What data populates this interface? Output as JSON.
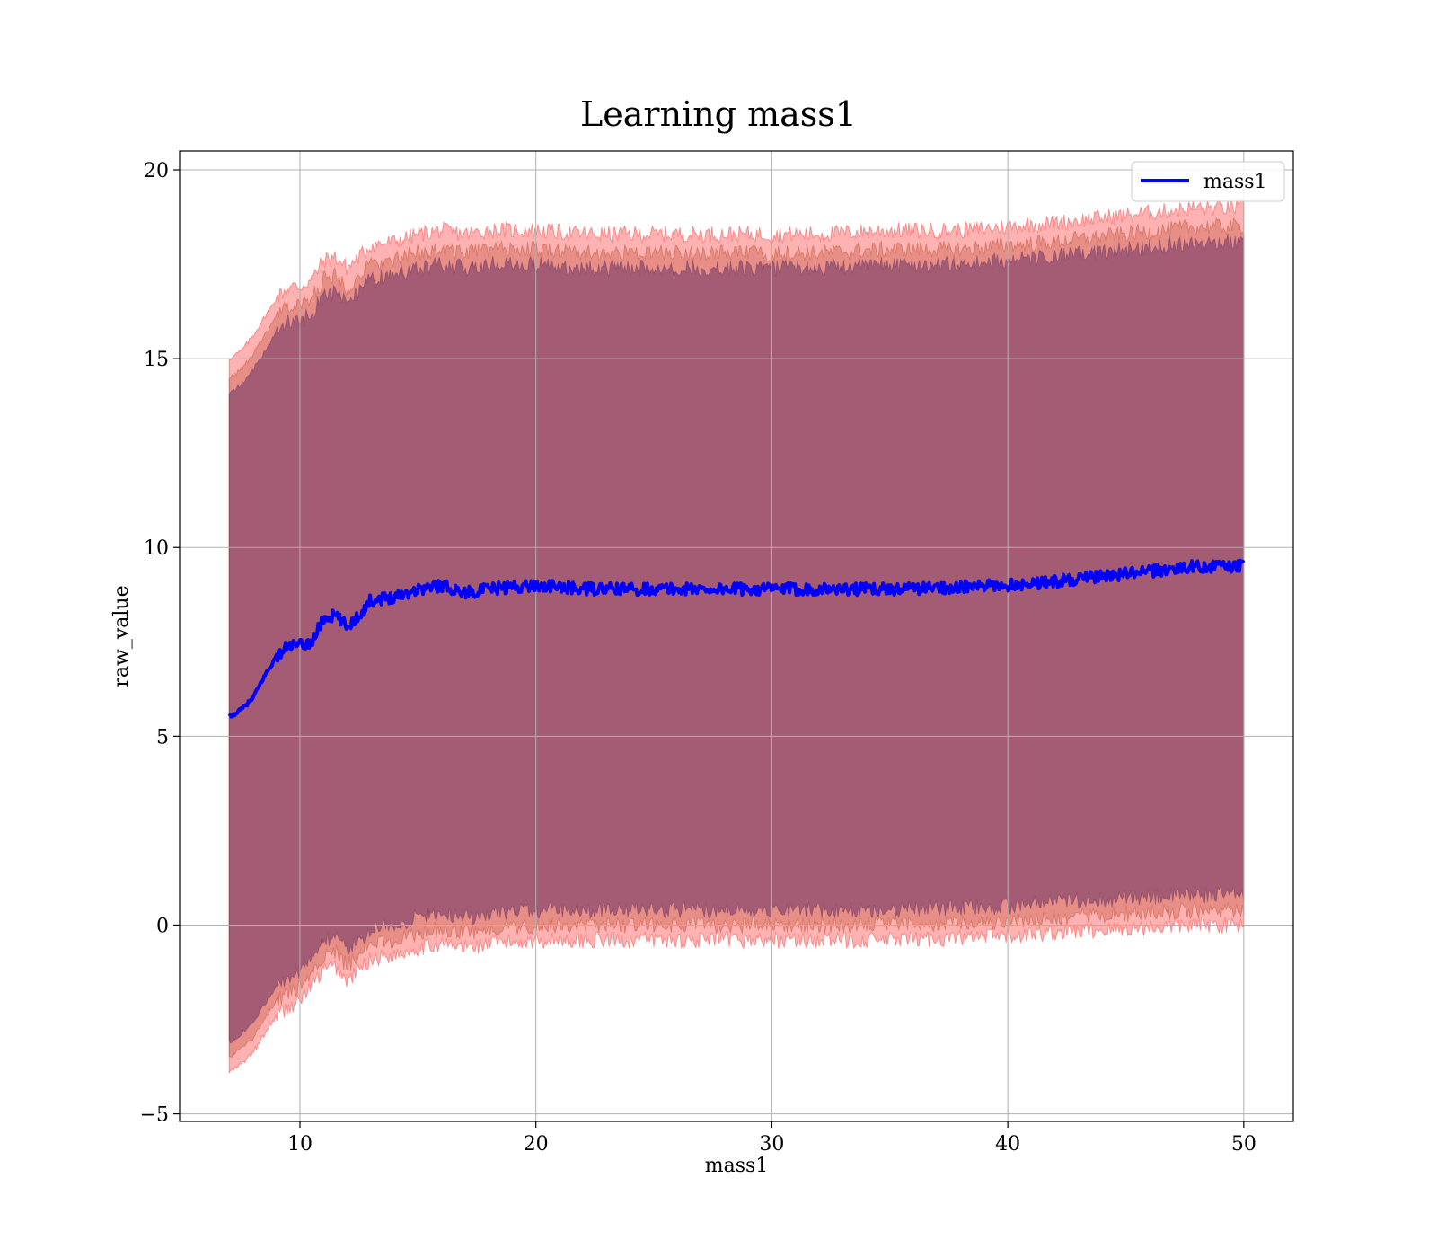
{
  "chart_data": {
    "type": "line",
    "title": "Learning mass1",
    "xlabel": "mass1",
    "ylabel": "raw_value",
    "xlim": [
      4.9,
      52.1
    ],
    "ylim": [
      -5.2,
      20.5
    ],
    "xticks": [
      10,
      20,
      30,
      40,
      50
    ],
    "yticks": [
      -5,
      0,
      5,
      10,
      15,
      20
    ],
    "xtick_labels": [
      "10",
      "20",
      "30",
      "40",
      "50"
    ],
    "ytick_labels": [
      "−5",
      "0",
      "5",
      "10",
      "15",
      "20"
    ],
    "grid": true,
    "legend": {
      "position": "top-right",
      "entries": [
        "mass1"
      ]
    },
    "series": [
      {
        "name": "mass1",
        "color": "#0000ff",
        "x": [
          7,
          7.5,
          8,
          8.5,
          9,
          9.5,
          10,
          10.5,
          11,
          11.5,
          12,
          12.5,
          13,
          14,
          15,
          16,
          17,
          18,
          20,
          22,
          25,
          28,
          30,
          32,
          35,
          38,
          40,
          42,
          45,
          48,
          50
        ],
        "y": [
          5.5,
          5.7,
          6.0,
          6.6,
          7.1,
          7.4,
          7.4,
          7.5,
          8.1,
          8.2,
          7.9,
          8.2,
          8.6,
          8.7,
          8.9,
          9.0,
          8.8,
          8.9,
          9.0,
          8.9,
          8.9,
          8.9,
          8.9,
          8.9,
          8.9,
          8.95,
          9.0,
          9.1,
          9.3,
          9.5,
          9.5
        ]
      }
    ],
    "bands": [
      {
        "color": "#ff0000",
        "opacity": 0.3,
        "x": [
          7,
          7.5,
          8,
          8.5,
          9,
          9.5,
          10,
          10.5,
          11,
          11.5,
          12,
          12.5,
          13,
          14,
          15,
          16,
          17,
          18,
          20,
          22,
          25,
          28,
          30,
          32,
          35,
          38,
          40,
          42,
          45,
          48,
          50
        ],
        "lower": [
          -3.9,
          -3.7,
          -3.4,
          -2.9,
          -2.4,
          -2.2,
          -2.0,
          -1.6,
          -1.2,
          -1.1,
          -1.5,
          -1.2,
          -0.9,
          -0.8,
          -0.6,
          -0.5,
          -0.6,
          -0.5,
          -0.4,
          -0.4,
          -0.4,
          -0.4,
          -0.4,
          -0.4,
          -0.4,
          -0.35,
          -0.3,
          -0.2,
          -0.1,
          0.0,
          0.0
        ],
        "upper": [
          15.0,
          15.2,
          15.6,
          16.1,
          16.6,
          16.9,
          16.9,
          17.1,
          17.6,
          17.7,
          17.4,
          17.7,
          18.0,
          18.1,
          18.3,
          18.4,
          18.3,
          18.4,
          18.4,
          18.3,
          18.3,
          18.3,
          18.3,
          18.3,
          18.4,
          18.4,
          18.5,
          18.6,
          18.8,
          19.0,
          19.0
        ]
      },
      {
        "color": "#b04020",
        "opacity": 0.3,
        "x": [
          7,
          7.5,
          8,
          8.5,
          9,
          9.5,
          10,
          10.5,
          11,
          11.5,
          12,
          12.5,
          13,
          14,
          15,
          16,
          17,
          18,
          20,
          22,
          25,
          28,
          30,
          32,
          35,
          38,
          40,
          42,
          45,
          48,
          50
        ],
        "lower": [
          -3.5,
          -3.3,
          -3.0,
          -2.5,
          -2.0,
          -1.8,
          -1.6,
          -1.2,
          -0.8,
          -0.7,
          -1.1,
          -0.8,
          -0.5,
          -0.4,
          -0.2,
          -0.1,
          -0.2,
          -0.1,
          0.0,
          0.0,
          0.0,
          0.0,
          0.0,
          0.0,
          0.0,
          0.05,
          0.1,
          0.2,
          0.3,
          0.4,
          0.4
        ],
        "upper": [
          14.5,
          14.7,
          15.1,
          15.6,
          16.1,
          16.4,
          16.4,
          16.6,
          17.1,
          17.2,
          16.9,
          17.2,
          17.5,
          17.6,
          17.8,
          17.9,
          17.8,
          17.9,
          17.9,
          17.8,
          17.8,
          17.8,
          17.8,
          17.8,
          17.9,
          17.9,
          18.0,
          18.1,
          18.3,
          18.5,
          18.5
        ]
      },
      {
        "color": "#602a60",
        "opacity": 0.5,
        "x": [
          7,
          7.5,
          8,
          8.5,
          9,
          9.5,
          10,
          10.5,
          11,
          11.5,
          12,
          12.5,
          13,
          14,
          15,
          16,
          17,
          18,
          20,
          22,
          25,
          28,
          30,
          32,
          35,
          38,
          40,
          42,
          45,
          48,
          50
        ],
        "lower": [
          -3.1,
          -2.9,
          -2.6,
          -2.1,
          -1.6,
          -1.4,
          -1.2,
          -0.8,
          -0.4,
          -0.3,
          -0.7,
          -0.4,
          -0.1,
          0.0,
          0.2,
          0.3,
          0.2,
          0.3,
          0.4,
          0.4,
          0.4,
          0.4,
          0.4,
          0.4,
          0.4,
          0.45,
          0.5,
          0.6,
          0.7,
          0.8,
          0.8
        ],
        "upper": [
          14.1,
          14.3,
          14.7,
          15.2,
          15.7,
          16.0,
          16.0,
          16.2,
          16.7,
          16.8,
          16.5,
          16.8,
          17.1,
          17.2,
          17.4,
          17.5,
          17.4,
          17.5,
          17.5,
          17.4,
          17.4,
          17.4,
          17.4,
          17.4,
          17.5,
          17.5,
          17.6,
          17.7,
          17.9,
          18.1,
          18.1
        ]
      }
    ]
  }
}
